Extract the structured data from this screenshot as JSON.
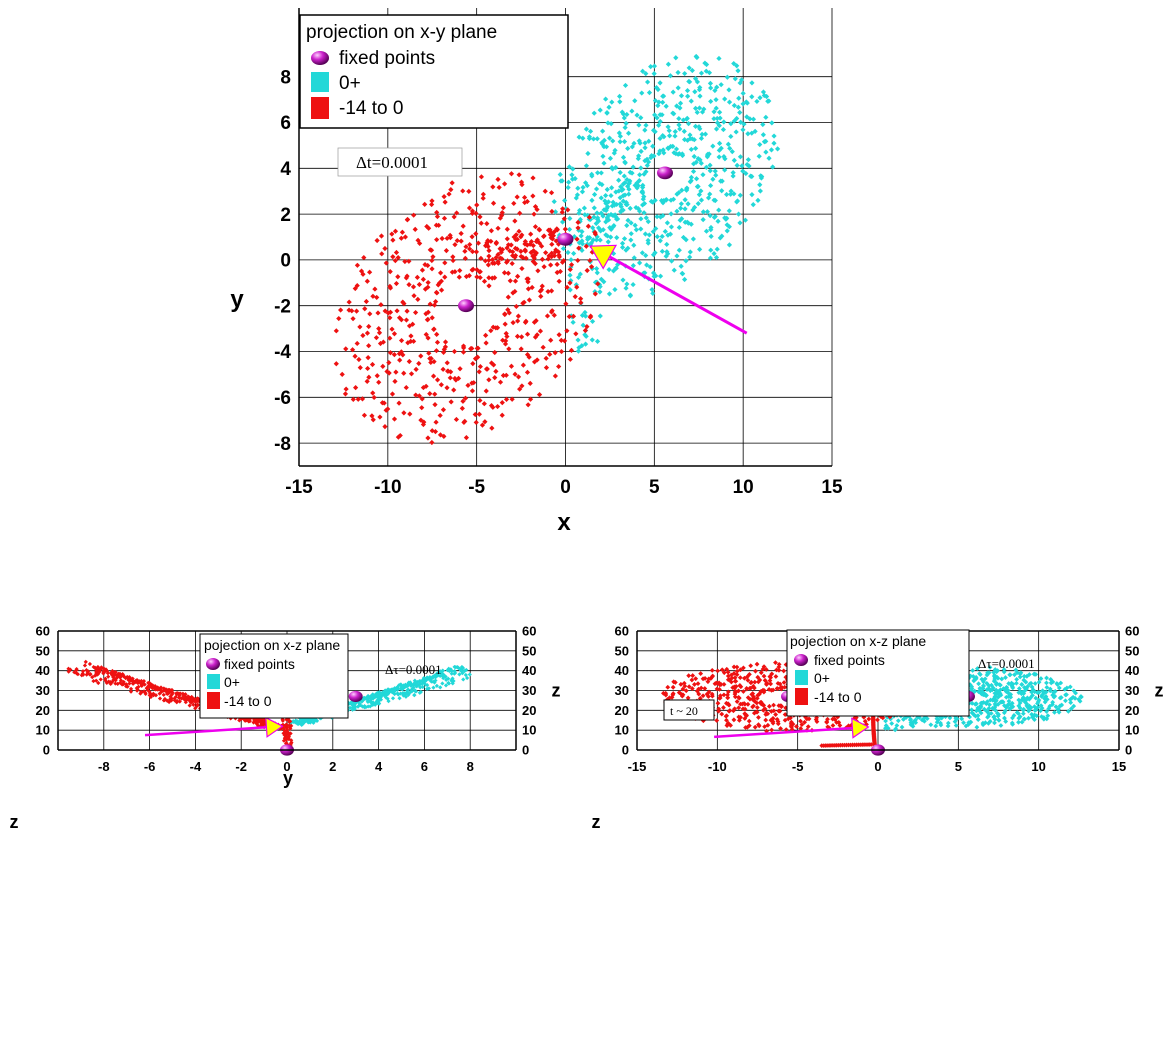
{
  "chart_data": [
    {
      "type": "scatter",
      "title": "",
      "xlabel": "x",
      "ylabel": "y",
      "xlim": [
        -15,
        15
      ],
      "ylim": [
        -9,
        11
      ],
      "xticks": [
        -15,
        -10,
        -5,
        0,
        5,
        10,
        15
      ],
      "yticks": [
        -8,
        -6,
        -4,
        -2,
        0,
        2,
        4,
        6,
        8
      ],
      "grid": true,
      "legend_position": "top-left",
      "legend": {
        "title": "projection on x-y plane",
        "entries": [
          "fixed points",
          "0+",
          "-14 to 0"
        ]
      },
      "annotations": [
        {
          "id": "dt",
          "text": "Δt=0.0001"
        }
      ],
      "fixed_points": [
        {
          "x": 0,
          "y": 0.9
        },
        {
          "x": 5.6,
          "y": 3.8
        },
        {
          "x": -5.6,
          "y": -2.0
        }
      ],
      "arrow": {
        "from": [
          10.2,
          -3.2
        ],
        "to": [
          1.4,
          0.6
        ],
        "color": "#ee00ee",
        "head_color": "#ffff00"
      },
      "series": [
        {
          "name": "0+",
          "color": "#22d8d8",
          "attractor": "cyan_xy"
        },
        {
          "name": "-14 to 0",
          "color": "#ee1111",
          "attractor": "red_xy"
        }
      ]
    },
    {
      "type": "scatter",
      "title": "",
      "xlabel": "y",
      "ylabel": "z",
      "xlim": [
        -10,
        10
      ],
      "ylim": [
        0,
        60
      ],
      "xticks": [
        -8,
        -6,
        -4,
        -2,
        0,
        2,
        4,
        6,
        8
      ],
      "yticks": [
        0,
        10,
        20,
        30,
        40,
        50,
        60
      ],
      "grid": true,
      "legend_position": "top-center",
      "legend": {
        "title": "pojection on x-z plane",
        "entries": [
          "fixed points",
          "0+",
          "-14 to 0"
        ]
      },
      "annotations": [
        {
          "id": "dtau",
          "text": "Δτ=0.0001"
        }
      ],
      "fixed_points": [
        {
          "x": 0,
          "y": 0
        },
        {
          "x": -3.0,
          "y": 27
        },
        {
          "x": 3.0,
          "y": 27
        }
      ],
      "arrow": {
        "from": [
          -6.2,
          7.5
        ],
        "to": [
          -0.2,
          12.0
        ],
        "color": "#ee00ee",
        "head_color": "#ffff00"
      },
      "series": [
        {
          "name": "0+",
          "color": "#22d8d8",
          "attractor": "cyan_yz"
        },
        {
          "name": "-14 to 0",
          "color": "#ee1111",
          "attractor": "red_yz"
        }
      ]
    },
    {
      "type": "scatter",
      "title": "",
      "xlabel": "",
      "ylabel": "z",
      "xlim": [
        -15,
        15
      ],
      "ylim": [
        0,
        60
      ],
      "xticks": [
        -15,
        -10,
        -5,
        0,
        5,
        10,
        15
      ],
      "yticks": [
        0,
        10,
        20,
        30,
        40,
        50,
        60
      ],
      "grid": true,
      "legend_position": "top-center",
      "legend": {
        "title": "pojection on x-z plane",
        "entries": [
          "fixed points",
          "0+",
          "-14 to 0"
        ]
      },
      "annotations": [
        {
          "id": "dtau",
          "text": "Δτ=0.0001"
        },
        {
          "id": "t20",
          "text": "t ~ 20"
        }
      ],
      "fixed_points": [
        {
          "x": 0,
          "y": 0
        },
        {
          "x": -5.6,
          "y": 27
        },
        {
          "x": 5.6,
          "y": 27
        }
      ],
      "arrow": {
        "from": [
          -10.2,
          6.6
        ],
        "to": [
          -0.6,
          11.6
        ],
        "color": "#ee00ee",
        "head_color": "#ffff00"
      },
      "series": [
        {
          "name": "0+",
          "color": "#22d8d8",
          "attractor": "cyan_xz"
        },
        {
          "name": "-14 to 0",
          "color": "#ee1111",
          "attractor": "red_xz"
        }
      ]
    }
  ]
}
